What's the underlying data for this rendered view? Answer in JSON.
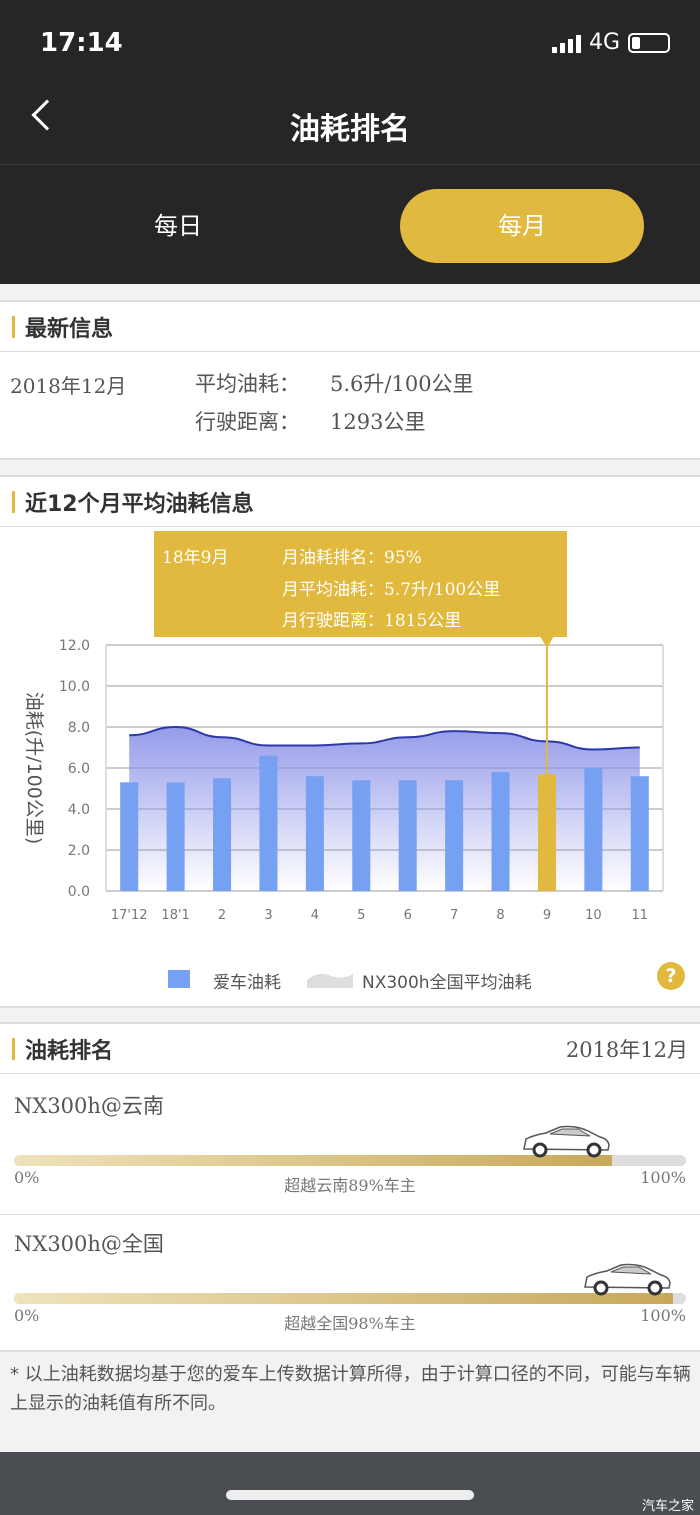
{
  "status": {
    "time": "17:14",
    "network": "4G"
  },
  "header": {
    "title": "油耗排名"
  },
  "tabs": [
    {
      "label": "每日",
      "active": false
    },
    {
      "label": "每月",
      "active": true
    }
  ],
  "latest": {
    "title": "最新信息",
    "month": "2018年12月",
    "avg_label": "平均油耗：",
    "avg_value": "5.6升/100公里",
    "dist_label": "行驶距离：",
    "dist_value": "1293公里"
  },
  "chart_section": {
    "title": "近12个月平均油耗信息"
  },
  "tooltip": {
    "month": "18年9月",
    "rank": "月油耗排名：95%",
    "avg": "月平均油耗：5.7升/100公里",
    "dist": "月行驶距离：1815公里"
  },
  "chart_data": {
    "type": "bar",
    "ylabel": "油耗(升/100公里)",
    "ylim": [
      0,
      12
    ],
    "yticks": [
      "0.0",
      "2.0",
      "4.0",
      "6.0",
      "8.0",
      "10.0",
      "12.0"
    ],
    "categories": [
      "17'12",
      "18'1",
      "2",
      "3",
      "4",
      "5",
      "6",
      "7",
      "8",
      "9",
      "10",
      "11"
    ],
    "series": [
      {
        "name": "爱车油耗",
        "type": "bar",
        "values": [
          5.3,
          5.3,
          5.5,
          6.6,
          5.6,
          5.4,
          5.4,
          5.4,
          5.8,
          5.7,
          6.0,
          5.6
        ]
      },
      {
        "name": "NX300h全国平均油耗",
        "type": "area",
        "values": [
          7.6,
          8.0,
          7.5,
          7.1,
          7.1,
          7.2,
          7.5,
          7.8,
          7.7,
          7.3,
          6.9,
          7.0
        ]
      }
    ],
    "highlight_index": 9,
    "colors": {
      "bar": "#76a0f2",
      "highlight": "#e1b93f",
      "line": "#2b3aa8"
    },
    "grid": true,
    "legend": "bottom"
  },
  "ranking": {
    "title": "油耗排名",
    "month": "2018年12月",
    "items": [
      {
        "name": "NX300h@云南",
        "percent": 89,
        "text": "超越云南89%车主",
        "min": "0%",
        "max": "100%"
      },
      {
        "name": "NX300h@全国",
        "percent": 98,
        "text": "超越全国98%车主",
        "min": "0%",
        "max": "100%"
      }
    ]
  },
  "note": "*  以上油耗数据均基于您的爱车上传数据计算所得，由于计算口径的不同，可能与车辆上显示的油耗值有所不同。",
  "watermark": "汽车之家"
}
